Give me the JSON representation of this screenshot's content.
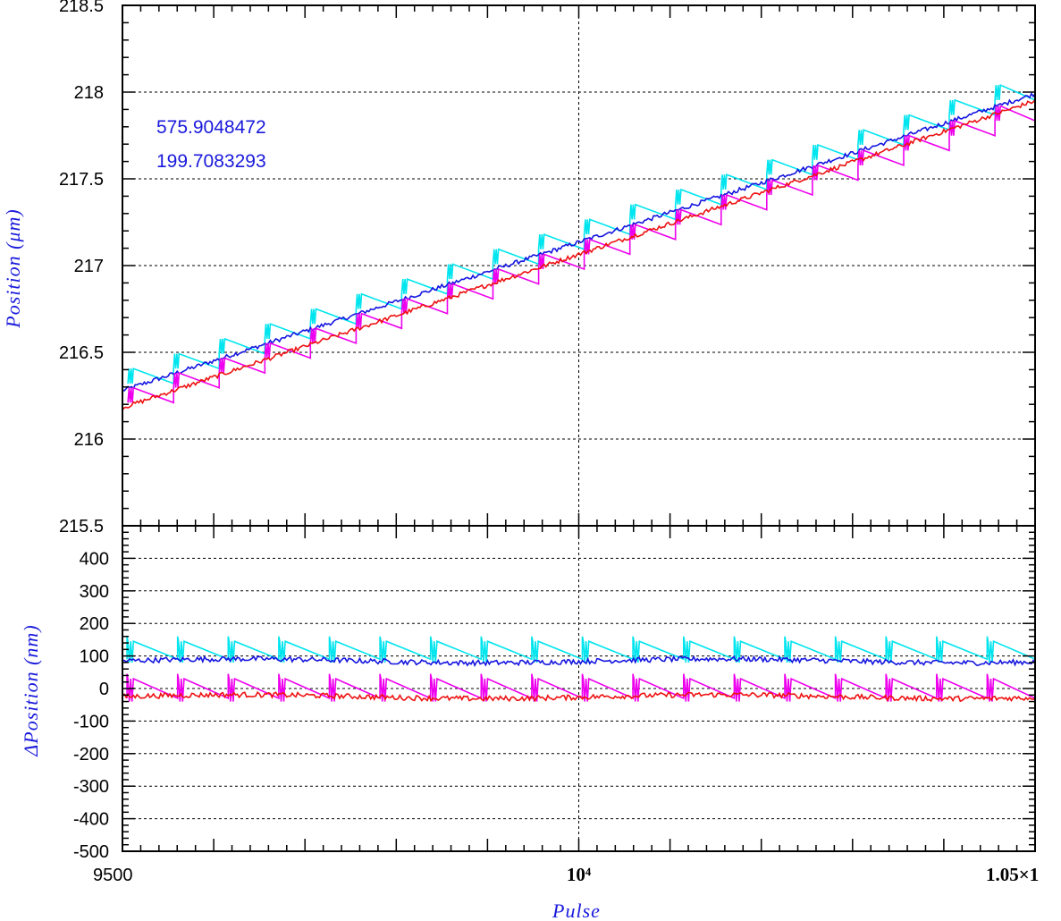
{
  "chart_data": [
    {
      "type": "line",
      "panel": "top",
      "ylabel": "Position (μm)",
      "ylim": [
        215.5,
        218.5
      ],
      "xlim": [
        9500,
        10500
      ],
      "yticks": [
        "218.5",
        "218",
        "217.5",
        "217",
        "216.5",
        "216",
        "215.5"
      ],
      "grid": true,
      "annotations": [
        "575.9048472",
        "199.7083293"
      ],
      "series": [
        {
          "color": "#00e5ee",
          "kind": "staircase",
          "start": 216.32,
          "end": 218.04,
          "steps": 20
        },
        {
          "color": "#1515e0",
          "kind": "linear",
          "start": 216.28,
          "end": 217.99
        },
        {
          "color": "#ee00ee",
          "kind": "staircase",
          "start": 216.21,
          "end": 217.92,
          "steps": 20
        },
        {
          "color": "#ee1111",
          "kind": "linear",
          "start": 216.18,
          "end": 217.95
        }
      ]
    },
    {
      "type": "line",
      "panel": "bottom",
      "xlabel": "Pulse",
      "ylabel": "ΔPosition (nm)",
      "ylim": [
        -500,
        500
      ],
      "xlim": [
        9500,
        10500
      ],
      "yticks": [
        "400",
        "300",
        "200",
        "100",
        "0",
        "-100",
        "-200",
        "-300",
        "-400",
        "-500"
      ],
      "xticks": [
        "9500",
        "10⁴",
        "1.05×1"
      ],
      "grid": true,
      "series": [
        {
          "color": "#00e5ee",
          "kind": "sawtooth",
          "min": 90,
          "max": 160,
          "period": 56
        },
        {
          "color": "#1515e0",
          "kind": "flat",
          "level": 85
        },
        {
          "color": "#ee00ee",
          "kind": "sawtooth",
          "min": -30,
          "max": 45,
          "period": 56
        },
        {
          "color": "#ee1111",
          "kind": "flat",
          "level": -25
        }
      ]
    }
  ]
}
